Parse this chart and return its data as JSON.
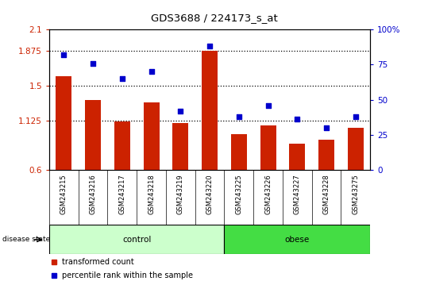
{
  "title": "GDS3688 / 224173_s_at",
  "samples": [
    "GSM243215",
    "GSM243216",
    "GSM243217",
    "GSM243218",
    "GSM243219",
    "GSM243220",
    "GSM243225",
    "GSM243226",
    "GSM243227",
    "GSM243228",
    "GSM243275"
  ],
  "transformed_count": [
    1.6,
    1.35,
    1.12,
    1.32,
    1.1,
    1.875,
    0.98,
    1.08,
    0.88,
    0.92,
    1.05
  ],
  "percentile_rank": [
    82,
    76,
    65,
    70,
    42,
    88,
    38,
    46,
    36,
    30,
    38
  ],
  "ylim_left": [
    0.6,
    2.1
  ],
  "ylim_right": [
    0,
    100
  ],
  "yticks_left": [
    0.6,
    1.125,
    1.5,
    1.875,
    2.1
  ],
  "yticks_right": [
    0,
    25,
    50,
    75,
    100
  ],
  "ytick_labels_left": [
    "0.6",
    "1.125",
    "1.5",
    "1.875",
    "2.1"
  ],
  "ytick_labels_right": [
    "0",
    "25",
    "50",
    "75",
    "100%"
  ],
  "hlines": [
    1.875,
    1.5,
    1.125
  ],
  "bar_color": "#cc2200",
  "dot_color": "#0000cc",
  "n_control": 6,
  "n_obese": 5,
  "control_label": "control",
  "obese_label": "obese",
  "disease_state_label": "disease state",
  "legend_bar_label": "transformed count",
  "legend_dot_label": "percentile rank within the sample",
  "plot_bg_color": "#ffffff",
  "tick_area_bg": "#d4d4d4",
  "control_bg": "#ccffcc",
  "obese_bg": "#44dd44"
}
